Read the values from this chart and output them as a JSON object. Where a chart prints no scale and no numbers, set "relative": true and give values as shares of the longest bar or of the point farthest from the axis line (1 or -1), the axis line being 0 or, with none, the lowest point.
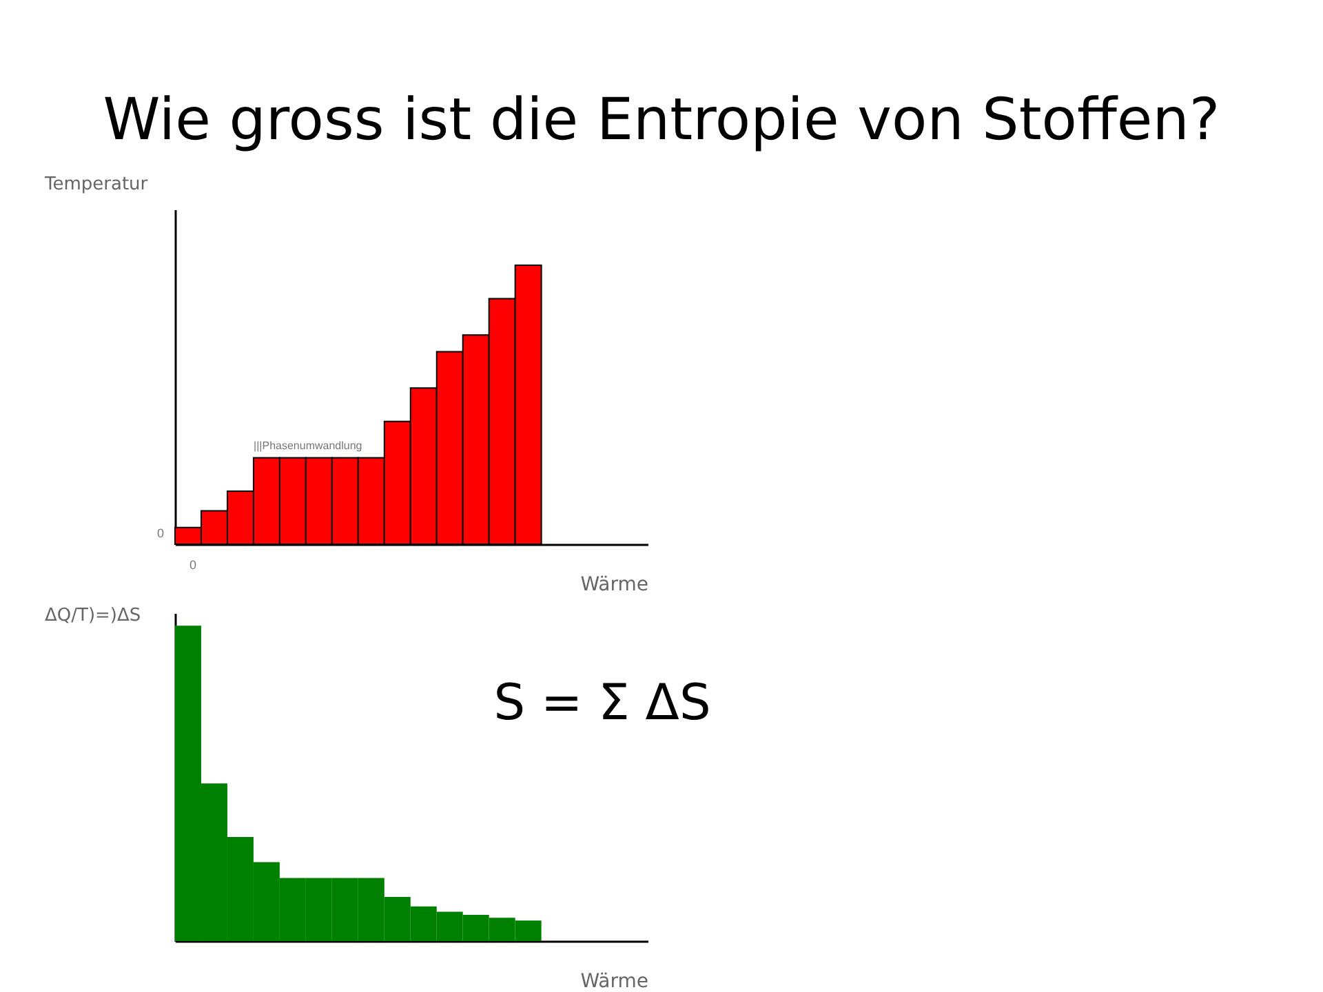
{
  "chart_data": [
    {
      "type": "bar",
      "title": "Wie gross ist die Entropie von Stoffen?",
      "ylabel": "Temperatur",
      "xlabel": "Wärme",
      "relative": true,
      "categories": [
        null,
        null,
        null,
        null,
        null,
        null,
        null,
        null,
        null,
        null,
        null,
        null,
        null,
        null
      ],
      "values": [
        0.06,
        0.12,
        0.19,
        0.31,
        0.31,
        0.31,
        0.31,
        0.31,
        0.44,
        0.56,
        0.69,
        0.75,
        0.88,
        1
      ],
      "color": "#ff0000",
      "annotations": [
        {
          "text": "|||Phasenumwandlung",
          "y": 0.31
        },
        "0",
        "0"
      ]
    },
    {
      "type": "bar",
      "ylabel": "ΔQ/T)=)ΔS",
      "xlabel": "Wärme",
      "relative": true,
      "categories": [
        null,
        null,
        null,
        null,
        null,
        null,
        null,
        null,
        null,
        null,
        null,
        null,
        null,
        null
      ],
      "values": [
        1,
        0.5,
        0.33,
        0.25,
        0.2,
        0.2,
        0.2,
        0.2,
        0.14,
        0.11,
        0.093,
        0.083,
        0.074,
        0.065
      ],
      "color": "#008000",
      "annotations": [
        "S = Σ ΔS"
      ]
    }
  ]
}
